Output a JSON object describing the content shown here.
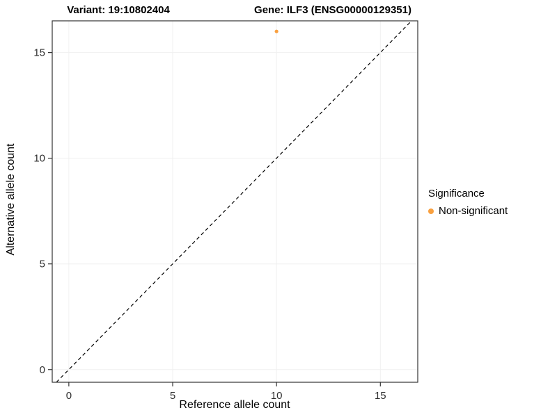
{
  "chart_data": {
    "type": "scatter",
    "title_left": "Variant: 19:10802404",
    "title_right": "Gene: ILF3 (ENSG00000129351)",
    "xlabel": "Reference allele count",
    "ylabel": "Alternative allele count",
    "xlim": [
      -0.8,
      16.8
    ],
    "ylim": [
      -0.6,
      16.5
    ],
    "xticks": [
      0,
      5,
      10,
      15
    ],
    "yticks": [
      0,
      5,
      10,
      15
    ],
    "grid": true,
    "grid_color": "#f0f0f0",
    "panel_border_color": "#333333",
    "tick_label_color": "#303030",
    "reference_line": {
      "style": "dashed",
      "slope": 1,
      "intercept": 0,
      "color": "#000000"
    },
    "series": [
      {
        "name": "Non-significant",
        "color": "#F9A03F",
        "points": [
          {
            "x": 10,
            "y": 16
          }
        ]
      }
    ],
    "legend": {
      "title": "Significance",
      "position": "right",
      "entries": [
        {
          "label": "Non-significant",
          "color": "#F9A03F"
        }
      ]
    }
  }
}
